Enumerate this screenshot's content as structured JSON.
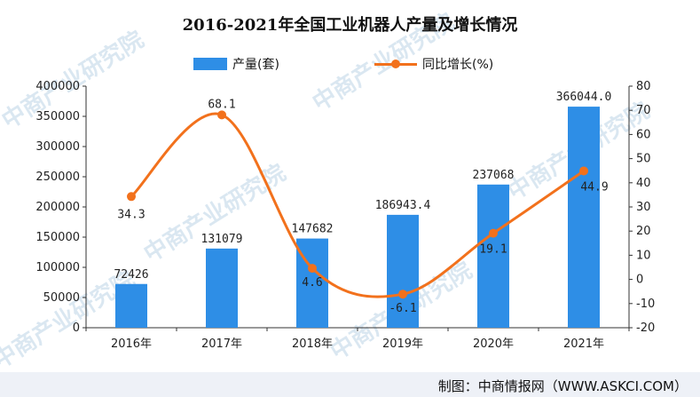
{
  "chart_data": {
    "type": "bar",
    "title": "2016-2021年全国工业机器人产量及增长情况",
    "categories": [
      "2016年",
      "2017年",
      "2018年",
      "2019年",
      "2020年",
      "2021年"
    ],
    "series": [
      {
        "name": "产量(套)",
        "type": "bar",
        "axis": "left",
        "color": "#2e8ee6",
        "values": [
          72426,
          131079,
          147682,
          186943.4,
          237068,
          366044.0
        ],
        "labels": [
          "72426",
          "131079",
          "147682",
          "186943.4",
          "237068",
          "366044.0"
        ]
      },
      {
        "name": "同比增长(%)",
        "type": "line",
        "axis": "right",
        "color": "#f2711c",
        "values": [
          34.3,
          68.1,
          4.6,
          -6.1,
          19.1,
          44.9
        ],
        "labels": [
          "34.3",
          "68.1",
          "4.6",
          "-6.1",
          "19.1",
          "44.9"
        ]
      }
    ],
    "y_left": {
      "ylim": [
        0,
        400000
      ],
      "ticks": [
        0,
        50000,
        100000,
        150000,
        200000,
        250000,
        300000,
        350000,
        400000
      ],
      "tick_labels": [
        "0",
        "50000",
        "100000",
        "150000",
        "200000",
        "250000",
        "300000",
        "350000",
        "400000"
      ]
    },
    "y_right": {
      "ylim": [
        -20,
        80
      ],
      "ticks": [
        -20,
        -10,
        0,
        10,
        20,
        30,
        40,
        50,
        60,
        70,
        80
      ],
      "tick_labels": [
        "-20",
        "-10",
        "0",
        "10",
        "20",
        "30",
        "40",
        "50",
        "60",
        "70",
        "80"
      ]
    },
    "grid": false,
    "legend_position": "top-center"
  },
  "footer": {
    "credit": "制图：中商情报网（WWW.ASKCI.COM）"
  },
  "watermark": {
    "text": "中商产业研究院"
  }
}
